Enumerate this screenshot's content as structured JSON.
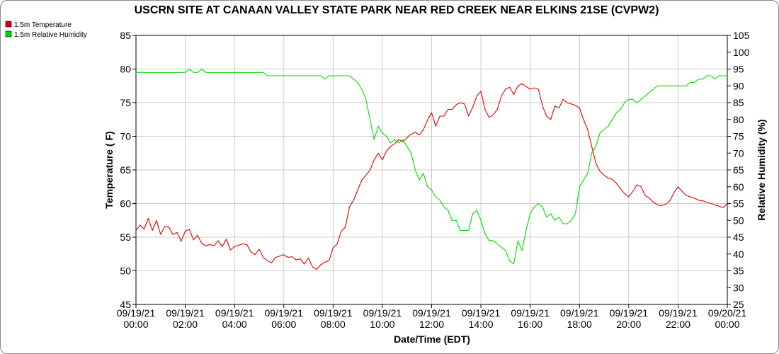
{
  "chart_data": {
    "type": "line",
    "title": "USCRN SITE AT CANAAN VALLEY STATE PARK NEAR RED CREEK NEAR ELKINS 21SE (CVPW2)",
    "xlabel": "Date/Time (EDT)",
    "ylabel": "Temperature ( F)",
    "y2label": "Relative Humidity (%)",
    "xlim": [
      "2021-09-19T00:00",
      "2021-09-20T00:00"
    ],
    "ylim": [
      45,
      85
    ],
    "y2lim": [
      25,
      105
    ],
    "yticks": [
      "45",
      "50",
      "55",
      "60",
      "65",
      "70",
      "75",
      "80",
      "85"
    ],
    "y2ticks": [
      "25",
      "30",
      "35",
      "40",
      "45",
      "50",
      "55",
      "60",
      "65",
      "70",
      "75",
      "80",
      "85",
      "90",
      "95",
      "100",
      "105"
    ],
    "xticks": [
      {
        "date": "09/19/21",
        "time": "00:00"
      },
      {
        "date": "09/19/21",
        "time": "02:00"
      },
      {
        "date": "09/19/21",
        "time": "04:00"
      },
      {
        "date": "09/19/21",
        "time": "06:00"
      },
      {
        "date": "09/19/21",
        "time": "08:00"
      },
      {
        "date": "09/19/21",
        "time": "10:00"
      },
      {
        "date": "09/19/21",
        "time": "12:00"
      },
      {
        "date": "09/19/21",
        "time": "14:00"
      },
      {
        "date": "09/19/21",
        "time": "16:00"
      },
      {
        "date": "09/19/21",
        "time": "18:00"
      },
      {
        "date": "09/19/21",
        "time": "20:00"
      },
      {
        "date": "09/19/21",
        "time": "22:00"
      },
      {
        "date": "09/20/21",
        "time": "00:00"
      }
    ],
    "grid": true,
    "legend_position": "top-left",
    "series": [
      {
        "name": "1.5m Temperature",
        "axis": "left",
        "color": "#dd0000",
        "x": [
          "00:00",
          "00:10",
          "00:20",
          "00:30",
          "00:40",
          "00:50",
          "01:00",
          "01:10",
          "01:20",
          "01:30",
          "01:40",
          "01:50",
          "02:00",
          "02:10",
          "02:20",
          "02:30",
          "02:40",
          "02:50",
          "03:00",
          "03:10",
          "03:20",
          "03:30",
          "03:40",
          "03:50",
          "04:00",
          "04:10",
          "04:20",
          "04:30",
          "04:40",
          "04:50",
          "05:00",
          "05:10",
          "05:20",
          "05:30",
          "05:40",
          "05:50",
          "06:00",
          "06:10",
          "06:20",
          "06:30",
          "06:40",
          "06:50",
          "07:00",
          "07:10",
          "07:20",
          "07:30",
          "07:40",
          "07:50",
          "08:00",
          "08:10",
          "08:20",
          "08:30",
          "08:40",
          "08:50",
          "09:00",
          "09:10",
          "09:20",
          "09:30",
          "09:40",
          "09:50",
          "10:00",
          "10:10",
          "10:20",
          "10:30",
          "10:40",
          "10:50",
          "11:00",
          "11:10",
          "11:20",
          "11:30",
          "11:40",
          "11:50",
          "12:00",
          "12:10",
          "12:20",
          "12:30",
          "12:40",
          "12:50",
          "13:00",
          "13:10",
          "13:20",
          "13:30",
          "13:40",
          "13:50",
          "14:00",
          "14:10",
          "14:20",
          "14:30",
          "14:40",
          "14:50",
          "15:00",
          "15:10",
          "15:20",
          "15:30",
          "15:40",
          "15:50",
          "16:00",
          "16:10",
          "16:20",
          "16:30",
          "16:40",
          "16:50",
          "17:00",
          "17:10",
          "17:20",
          "17:30",
          "17:40",
          "17:50",
          "18:00",
          "18:10",
          "18:20",
          "18:30",
          "18:40",
          "18:50",
          "19:00",
          "19:10",
          "19:20",
          "19:30",
          "19:40",
          "19:50",
          "20:00",
          "20:10",
          "20:20",
          "20:30",
          "20:40",
          "20:50",
          "21:00",
          "21:10",
          "21:20",
          "21:30",
          "21:40",
          "21:50",
          "22:00",
          "22:10",
          "22:20",
          "22:30",
          "22:40",
          "22:50",
          "23:00",
          "23:10",
          "23:20",
          "23:30",
          "23:40",
          "23:50",
          "24:00"
        ],
        "values": [
          56.0,
          56.8,
          56.2,
          57.8,
          56.0,
          57.5,
          55.4,
          56.6,
          56.5,
          55.4,
          55.7,
          54.4,
          55.9,
          56.2,
          54.6,
          55.3,
          54.1,
          53.7,
          53.9,
          53.7,
          54.5,
          53.6,
          54.7,
          53.1,
          53.6,
          53.8,
          54.0,
          53.9,
          52.8,
          52.4,
          53.2,
          52.0,
          51.5,
          51.2,
          52.0,
          52.2,
          52.4,
          52.0,
          52.1,
          51.6,
          51.8,
          51.0,
          51.9,
          50.6,
          50.2,
          50.9,
          51.3,
          51.5,
          53.4,
          54.0,
          55.9,
          56.5,
          59.5,
          60.5,
          62.0,
          63.5,
          64.2,
          65.0,
          66.5,
          67.5,
          66.5,
          67.8,
          68.5,
          68.9,
          69.5,
          69.2,
          69.8,
          70.3,
          70.6,
          70.2,
          71.0,
          72.4,
          73.5,
          71.5,
          73.0,
          73.0,
          74.0,
          74.0,
          74.7,
          75.0,
          74.8,
          73.0,
          74.3,
          76.0,
          76.7,
          74.0,
          72.8,
          73.2,
          74.0,
          76.0,
          77.0,
          77.3,
          76.2,
          77.5,
          77.8,
          77.4,
          77.0,
          77.2,
          77.0,
          74.5,
          73.0,
          72.5,
          74.5,
          74.2,
          75.5,
          75.0,
          74.8,
          74.6,
          74.2,
          72.5,
          71.0,
          68.5,
          66.0,
          64.8,
          64.2,
          63.8,
          63.6,
          63.0,
          62.2,
          61.5,
          61.0,
          61.8,
          62.8,
          62.5,
          61.2,
          60.8,
          60.2,
          59.8,
          59.7,
          59.9,
          60.4,
          61.6,
          62.5,
          61.8,
          61.2,
          61.0,
          60.8,
          60.5,
          60.4,
          60.2,
          60.0,
          59.8,
          59.6,
          59.4,
          60.0
        ]
      },
      {
        "name": "1.5m Relative Humidity",
        "axis": "right",
        "color": "#00dd00",
        "x": [
          "00:00",
          "00:10",
          "00:20",
          "00:30",
          "00:40",
          "00:50",
          "01:00",
          "01:10",
          "01:20",
          "01:30",
          "01:40",
          "01:50",
          "02:00",
          "02:10",
          "02:20",
          "02:30",
          "02:40",
          "02:50",
          "03:00",
          "03:10",
          "03:20",
          "03:30",
          "03:40",
          "03:50",
          "04:00",
          "04:10",
          "04:20",
          "04:30",
          "04:40",
          "04:50",
          "05:00",
          "05:10",
          "05:20",
          "05:30",
          "05:40",
          "05:50",
          "06:00",
          "06:10",
          "06:20",
          "06:30",
          "06:40",
          "06:50",
          "07:00",
          "07:10",
          "07:20",
          "07:30",
          "07:40",
          "07:50",
          "08:00",
          "08:10",
          "08:20",
          "08:30",
          "08:40",
          "08:50",
          "09:00",
          "09:10",
          "09:20",
          "09:30",
          "09:40",
          "09:50",
          "10:00",
          "10:10",
          "10:20",
          "10:30",
          "10:40",
          "10:50",
          "11:00",
          "11:10",
          "11:20",
          "11:30",
          "11:40",
          "11:50",
          "12:00",
          "12:10",
          "12:20",
          "12:30",
          "12:40",
          "12:50",
          "13:00",
          "13:10",
          "13:20",
          "13:30",
          "13:40",
          "13:50",
          "14:00",
          "14:10",
          "14:20",
          "14:30",
          "14:40",
          "14:50",
          "15:00",
          "15:10",
          "15:20",
          "15:30",
          "15:40",
          "15:50",
          "16:00",
          "16:10",
          "16:20",
          "16:30",
          "16:40",
          "16:50",
          "17:00",
          "17:10",
          "17:20",
          "17:30",
          "17:40",
          "17:50",
          "18:00",
          "18:10",
          "18:20",
          "18:30",
          "18:40",
          "18:50",
          "19:00",
          "19:10",
          "19:20",
          "19:30",
          "19:40",
          "19:50",
          "20:00",
          "20:10",
          "20:20",
          "20:30",
          "20:40",
          "20:50",
          "21:00",
          "21:10",
          "21:20",
          "21:30",
          "21:40",
          "21:50",
          "22:00",
          "22:10",
          "22:20",
          "22:30",
          "22:40",
          "22:50",
          "23:00",
          "23:10",
          "23:20",
          "23:30",
          "23:40",
          "23:50",
          "24:00"
        ],
        "values": [
          94,
          94,
          94,
          94,
          94,
          94,
          94,
          94,
          94,
          94,
          94,
          94,
          94,
          95,
          94,
          94,
          95,
          94,
          94,
          94,
          94,
          94,
          94,
          94,
          94,
          94,
          94,
          94,
          94,
          94,
          94,
          94,
          93,
          93,
          93,
          93,
          93,
          93,
          93,
          93,
          93,
          93,
          93,
          93,
          93,
          93,
          92,
          93,
          93,
          93,
          93,
          93,
          93,
          92,
          91,
          89,
          86,
          80,
          74,
          78,
          76,
          75,
          73,
          74,
          73,
          74,
          72,
          70,
          65,
          62,
          64,
          60,
          59,
          57,
          56,
          54,
          53,
          50,
          50,
          47,
          47,
          47,
          52,
          53,
          50,
          46,
          44,
          44,
          43,
          42,
          41,
          38,
          37,
          44,
          41,
          47,
          52,
          54,
          55,
          54,
          51,
          52,
          50,
          51,
          49,
          49,
          50,
          52,
          60,
          62,
          64,
          70,
          72,
          76,
          77,
          78,
          80,
          82,
          83,
          85,
          86,
          86,
          85,
          86,
          87,
          88,
          89,
          90,
          90,
          90,
          90,
          90,
          90,
          90,
          90,
          91,
          91,
          92,
          92,
          93,
          93,
          92,
          93,
          93,
          93
        ]
      }
    ]
  }
}
